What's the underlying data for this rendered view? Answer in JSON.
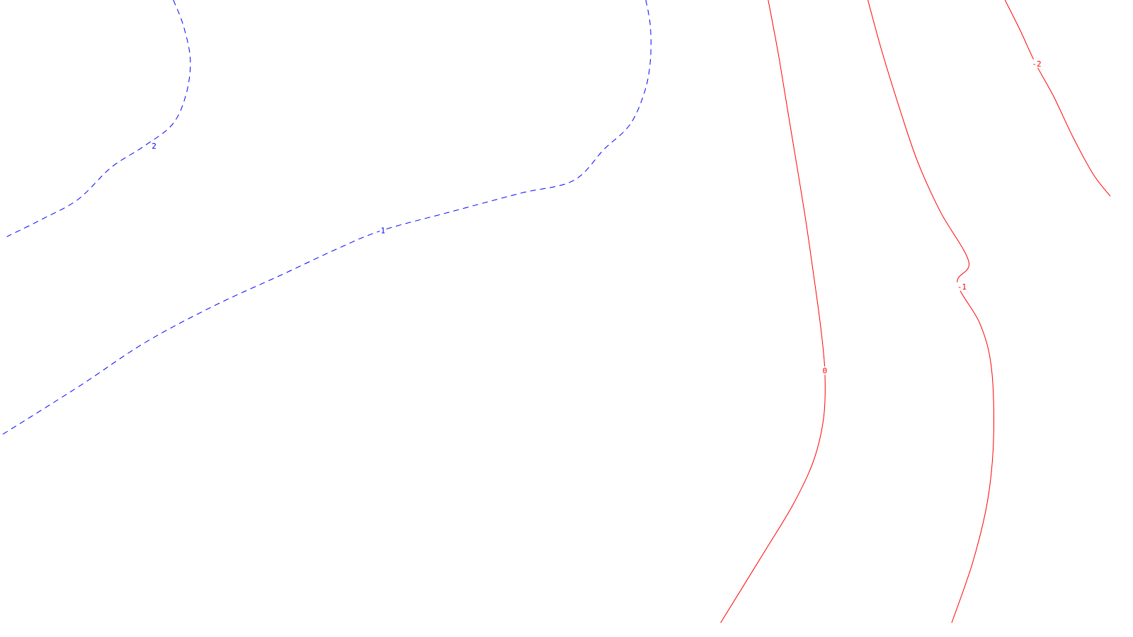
{
  "chart_data": {
    "type": "contour",
    "title": "",
    "xlabel": "",
    "ylabel": "",
    "grid": false,
    "legend": "none",
    "levels": [
      {
        "value": 2,
        "label": "2",
        "color": "#0000ff",
        "style": "dashed",
        "points": [
          [
            0.153,
            1.0
          ],
          [
            0.162,
            0.958
          ],
          [
            0.168,
            0.903
          ],
          [
            0.164,
            0.847
          ],
          [
            0.152,
            0.8
          ],
          [
            0.126,
            0.764
          ],
          [
            0.098,
            0.731
          ],
          [
            0.069,
            0.68
          ],
          [
            0.037,
            0.648
          ],
          [
            0.006,
            0.62
          ]
        ]
      },
      {
        "value": 1,
        "label": "1",
        "color": "#0000ff",
        "style": "dashed",
        "points": [
          [
            0.57,
            1.0
          ],
          [
            0.574,
            0.958
          ],
          [
            0.574,
            0.903
          ],
          [
            0.569,
            0.853
          ],
          [
            0.556,
            0.8
          ],
          [
            0.533,
            0.76
          ],
          [
            0.506,
            0.71
          ],
          [
            0.46,
            0.69
          ],
          [
            0.398,
            0.66
          ],
          [
            0.337,
            0.63
          ],
          [
            0.297,
            0.6
          ],
          [
            0.25,
            0.56
          ],
          [
            0.19,
            0.51
          ],
          [
            0.128,
            0.45
          ],
          [
            0.07,
            0.38
          ],
          [
            0.0,
            0.3
          ]
        ]
      },
      {
        "value": 0,
        "label": "0",
        "color": "#ff0000",
        "style": "solid",
        "points": [
          [
            0.678,
            1.0
          ],
          [
            0.688,
            0.903
          ],
          [
            0.698,
            0.792
          ],
          [
            0.71,
            0.66
          ],
          [
            0.718,
            0.56
          ],
          [
            0.724,
            0.48
          ],
          [
            0.728,
            0.405
          ],
          [
            0.727,
            0.33
          ],
          [
            0.718,
            0.26
          ],
          [
            0.7,
            0.19
          ],
          [
            0.675,
            0.115
          ],
          [
            0.636,
            0.0
          ]
        ]
      },
      {
        "value": -1,
        "label": "-1",
        "color": "#ff0000",
        "style": "solid",
        "points": [
          [
            0.766,
            1.0
          ],
          [
            0.778,
            0.92
          ],
          [
            0.795,
            0.82
          ],
          [
            0.81,
            0.74
          ],
          [
            0.83,
            0.66
          ],
          [
            0.855,
            0.58
          ],
          [
            0.845,
            0.545
          ],
          [
            0.865,
            0.48
          ],
          [
            0.875,
            0.41
          ],
          [
            0.877,
            0.3
          ],
          [
            0.872,
            0.2
          ],
          [
            0.859,
            0.1
          ],
          [
            0.84,
            0.0
          ]
        ]
      },
      {
        "value": -2,
        "label": "-2",
        "color": "#ff0000",
        "style": "solid",
        "points": [
          [
            0.887,
            1.0
          ],
          [
            0.9,
            0.953
          ],
          [
            0.914,
            0.898
          ],
          [
            0.93,
            0.845
          ],
          [
            0.947,
            0.78
          ],
          [
            0.965,
            0.72
          ],
          [
            0.98,
            0.685
          ]
        ]
      }
    ],
    "level_labels": [
      {
        "text": "2",
        "x": 0.136,
        "y": 0.766
      },
      {
        "text": "1",
        "x": 0.338,
        "y": 0.63
      },
      {
        "text": "0",
        "x": 0.728,
        "y": 0.405
      },
      {
        "text": "-1",
        "x": 0.849,
        "y": 0.54
      },
      {
        "text": "-2",
        "x": 0.915,
        "y": 0.898
      }
    ]
  }
}
